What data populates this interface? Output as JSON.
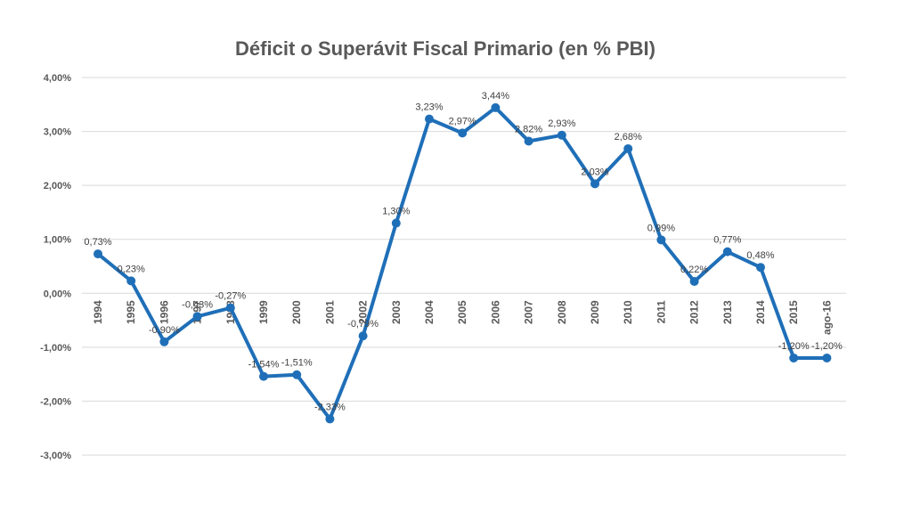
{
  "chart_data": {
    "type": "line",
    "title": "Déficit o Superávit Fiscal Primario (en % PBI)",
    "xlabel": "",
    "ylabel": "",
    "ylim": [
      -3,
      4
    ],
    "yticks": [
      {
        "value": 4,
        "label": "4,00%"
      },
      {
        "value": 3,
        "label": "3,00%"
      },
      {
        "value": 2,
        "label": "2,00%"
      },
      {
        "value": 1,
        "label": "1,00%"
      },
      {
        "value": 0,
        "label": "0,00%"
      },
      {
        "value": -1,
        "label": "-1,00%"
      },
      {
        "value": -2,
        "label": "-2,00%"
      },
      {
        "value": -3,
        "label": "-3,00%"
      }
    ],
    "grid": true,
    "legend": "none",
    "categories": [
      "1994",
      "1995",
      "1996",
      "1997",
      "1998",
      "1999",
      "2000",
      "2001",
      "2002",
      "2003",
      "2004",
      "2005",
      "2006",
      "2007",
      "2008",
      "2009",
      "2010",
      "2011",
      "2012",
      "2013",
      "2014",
      "2015",
      "ago-16"
    ],
    "series": [
      {
        "values": [
          0.73,
          0.23,
          -0.9,
          -0.43,
          -0.27,
          -1.54,
          -1.51,
          -2.33,
          -0.79,
          1.3,
          3.23,
          2.97,
          3.44,
          2.82,
          2.93,
          2.03,
          2.68,
          0.99,
          0.22,
          0.77,
          0.48,
          -1.2,
          -1.2
        ],
        "labels": [
          "0,73%",
          "0,23%",
          "-0,90%",
          "-0,43%",
          "-0,27%",
          "-1,54%",
          "-1,51%",
          "-2,33%",
          "-0,79%",
          "1,30%",
          "3,23%",
          "2,97%",
          "3,44%",
          "2,82%",
          "2,93%",
          "2,03%",
          "2,68%",
          "0,99%",
          "0,22%",
          "0,77%",
          "0,48%",
          "-1,20%",
          "-1,20%"
        ]
      }
    ],
    "colors": {
      "line": "#1f6fb8",
      "grid": "#d9d9d9",
      "text": "#595959"
    }
  }
}
